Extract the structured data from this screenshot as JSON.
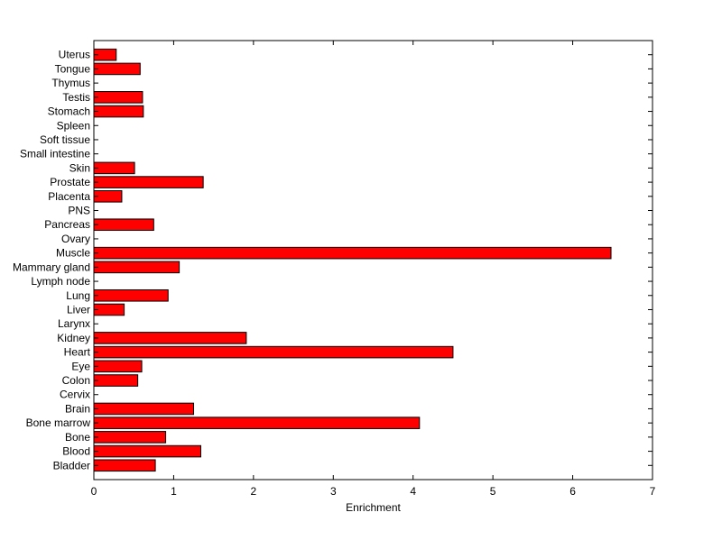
{
  "chart_data": {
    "type": "bar",
    "orientation": "horizontal",
    "xlabel": "Enrichment",
    "ylabel": "",
    "title": "",
    "xlim": [
      0,
      7
    ],
    "xticks": [
      0,
      1,
      2,
      3,
      4,
      5,
      6,
      7
    ],
    "bar_color": "#ff0000",
    "edge_color": "#000000",
    "grid": false,
    "categories": [
      "Bladder",
      "Blood",
      "Bone",
      "Bone marrow",
      "Brain",
      "Cervix",
      "Colon",
      "Eye",
      "Heart",
      "Kidney",
      "Larynx",
      "Liver",
      "Lung",
      "Lymph node",
      "Mammary gland",
      "Muscle",
      "Ovary",
      "Pancreas",
      "PNS",
      "Placenta",
      "Prostate",
      "Skin",
      "Small intestine",
      "Soft tissue",
      "Spleen",
      "Stomach",
      "Testis",
      "Thymus",
      "Tongue",
      "Uterus"
    ],
    "values": [
      0.77,
      1.34,
      0.9,
      4.08,
      1.25,
      0,
      0.55,
      0.6,
      4.5,
      1.91,
      0,
      0.38,
      0.93,
      0,
      1.07,
      6.48,
      0,
      0.75,
      0,
      0.35,
      1.37,
      0.51,
      0,
      0,
      0,
      0.62,
      0.61,
      0,
      0.58,
      0.28
    ]
  }
}
